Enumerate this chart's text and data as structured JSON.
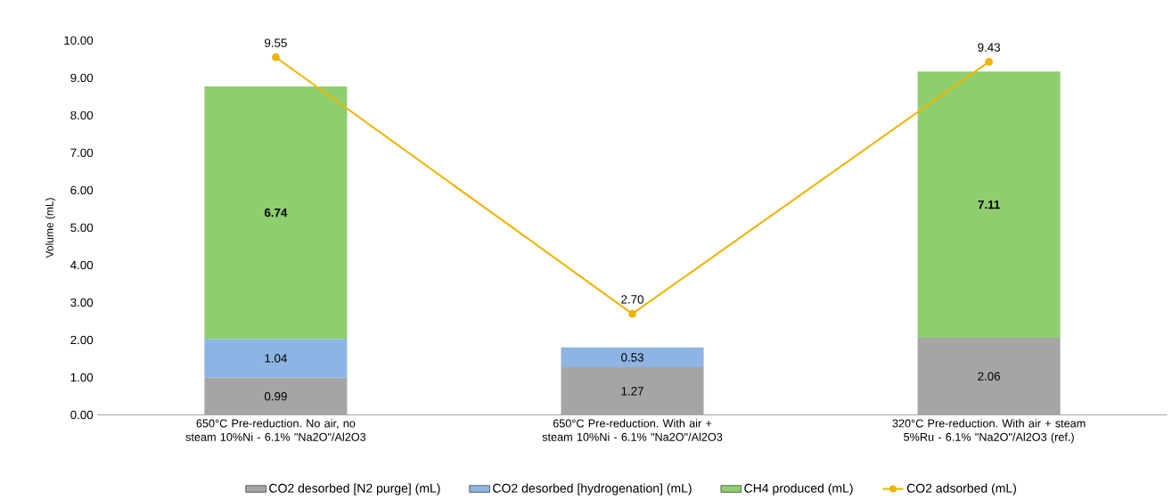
{
  "chart_data": {
    "type": "bar",
    "stacked": true,
    "ylabel": "Volume (mL)",
    "categories": [
      "650°C Pre-reduction. No air, no steam 10%Ni - 6.1% \"Na2O\"/Al2O3",
      "650°C Pre-reduction. With air + steam 10%Ni - 6.1% \"Na2O\"/Al2O3",
      "320°C Pre-reduction. With air + steam 5%Ru - 6.1% \"Na2O\"/Al2O3 (ref.)"
    ],
    "ylim": [
      0,
      10
    ],
    "yticks": [
      {
        "value": 0,
        "label": "0.00"
      },
      {
        "value": 1,
        "label": "1.00"
      },
      {
        "value": 2,
        "label": "2.00"
      },
      {
        "value": 3,
        "label": "3.00"
      },
      {
        "value": 4,
        "label": "4.00"
      },
      {
        "value": 5,
        "label": "5.00"
      },
      {
        "value": 6,
        "label": "6.00"
      },
      {
        "value": 7,
        "label": "7.00"
      },
      {
        "value": 8,
        "label": "8.00"
      },
      {
        "value": 9,
        "label": "9.00"
      },
      {
        "value": 10,
        "label": "10.00"
      }
    ],
    "legend": "bottom",
    "series": [
      {
        "name": "CO2 desorbed [N2 purge] (mL)",
        "color": "#a5a5a5",
        "values": [
          0.99,
          1.27,
          2.06
        ],
        "value_labels": [
          "0.99",
          "1.27",
          "2.06"
        ]
      },
      {
        "name": "CO2 desorbed [hydrogenation] (mL)",
        "color": "#8eb4e3",
        "values": [
          1.04,
          0.53,
          null
        ],
        "value_labels": [
          "1.04",
          "0.53",
          null
        ]
      },
      {
        "name": "CH4 produced (mL)",
        "color": "#8fce6f",
        "values": [
          6.74,
          null,
          7.11
        ],
        "value_labels": [
          "**6.74**",
          null,
          "**7.11**"
        ]
      },
      {
        "type": "line",
        "name": "CO2 adsorbed (mL)",
        "color": "#f0b400",
        "values": [
          9.55,
          2.7,
          9.43
        ],
        "value_labels": [
          "9.55",
          "2.70",
          "9.43"
        ],
        "marker": "circle",
        "line_style": "solid"
      }
    ]
  }
}
